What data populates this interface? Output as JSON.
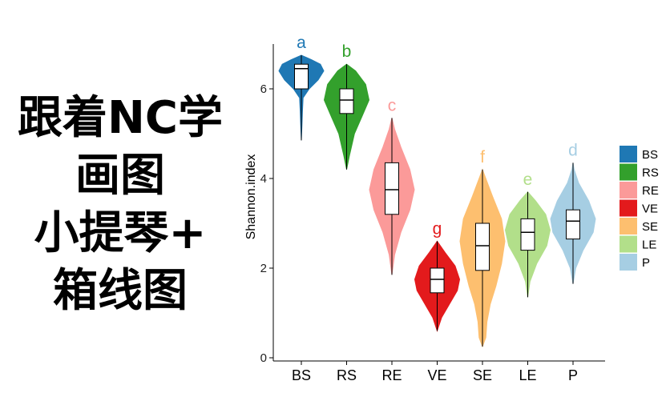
{
  "cover_title": {
    "lines": [
      "跟着NC学",
      "画图",
      "小提琴+",
      "箱线图"
    ]
  },
  "chart_data": {
    "type": "violin",
    "title": "",
    "xlabel": "",
    "ylabel": "Shannon.index",
    "ylim": [
      0,
      7
    ],
    "yticks": [
      0,
      2,
      4,
      6
    ],
    "grid": false,
    "legend_position": "right",
    "categories": [
      "BS",
      "RS",
      "RE",
      "VE",
      "SE",
      "LE",
      "P"
    ],
    "series": [
      {
        "name": "BS",
        "color": "#1f78b4",
        "letter": "a",
        "min": 4.85,
        "max": 6.75,
        "q1": 6.0,
        "median": 6.45,
        "q3": 6.55,
        "density": [
          [
            4.85,
            0
          ],
          [
            5.2,
            0.03
          ],
          [
            5.5,
            0.05
          ],
          [
            5.8,
            0.08
          ],
          [
            6.0,
            0.35
          ],
          [
            6.2,
            0.75
          ],
          [
            6.4,
            1.0
          ],
          [
            6.55,
            0.85
          ],
          [
            6.65,
            0.45
          ],
          [
            6.75,
            0
          ]
        ]
      },
      {
        "name": "RS",
        "color": "#33a02c",
        "letter": "b",
        "min": 4.2,
        "max": 6.55,
        "q1": 5.45,
        "median": 5.75,
        "q3": 6.0,
        "density": [
          [
            4.2,
            0
          ],
          [
            4.5,
            0.12
          ],
          [
            5.0,
            0.35
          ],
          [
            5.4,
            0.7
          ],
          [
            5.75,
            1.0
          ],
          [
            6.1,
            0.85
          ],
          [
            6.4,
            0.4
          ],
          [
            6.55,
            0
          ]
        ]
      },
      {
        "name": "RE",
        "color": "#fb9a99",
        "letter": "c",
        "min": 1.85,
        "max": 5.35,
        "q1": 3.2,
        "median": 3.75,
        "q3": 4.35,
        "density": [
          [
            1.85,
            0
          ],
          [
            2.3,
            0.12
          ],
          [
            2.8,
            0.4
          ],
          [
            3.3,
            0.8
          ],
          [
            3.75,
            1.0
          ],
          [
            4.2,
            0.8
          ],
          [
            4.7,
            0.4
          ],
          [
            5.1,
            0.12
          ],
          [
            5.35,
            0
          ]
        ]
      },
      {
        "name": "VE",
        "color": "#e31a1c",
        "letter": "g",
        "min": 0.6,
        "max": 2.6,
        "q1": 1.45,
        "median": 1.75,
        "q3": 2.0,
        "density": [
          [
            0.6,
            0
          ],
          [
            0.9,
            0.2
          ],
          [
            1.2,
            0.55
          ],
          [
            1.5,
            0.9
          ],
          [
            1.75,
            1.0
          ],
          [
            2.05,
            0.8
          ],
          [
            2.35,
            0.35
          ],
          [
            2.6,
            0
          ]
        ]
      },
      {
        "name": "SE",
        "color": "#fdbf6f",
        "letter": "f",
        "min": 0.25,
        "max": 4.2,
        "q1": 1.95,
        "median": 2.5,
        "q3": 3.0,
        "density": [
          [
            0.25,
            0
          ],
          [
            0.45,
            0.15
          ],
          [
            0.8,
            0.2
          ],
          [
            1.2,
            0.35
          ],
          [
            1.6,
            0.6
          ],
          [
            2.1,
            0.85
          ],
          [
            2.6,
            1.0
          ],
          [
            3.1,
            0.85
          ],
          [
            3.6,
            0.45
          ],
          [
            4.0,
            0.15
          ],
          [
            4.2,
            0
          ]
        ]
      },
      {
        "name": "LE",
        "color": "#b2df8a",
        "letter": "e",
        "min": 1.35,
        "max": 3.7,
        "q1": 2.4,
        "median": 2.8,
        "q3": 3.1,
        "density": [
          [
            1.35,
            0
          ],
          [
            1.7,
            0.1
          ],
          [
            2.1,
            0.4
          ],
          [
            2.5,
            0.85
          ],
          [
            2.85,
            1.0
          ],
          [
            3.2,
            0.8
          ],
          [
            3.5,
            0.35
          ],
          [
            3.7,
            0
          ]
        ]
      },
      {
        "name": "P",
        "color": "#a6cee3",
        "letter": "d",
        "min": 1.65,
        "max": 4.35,
        "q1": 2.65,
        "median": 3.05,
        "q3": 3.3,
        "density": [
          [
            1.65,
            0
          ],
          [
            2.0,
            0.12
          ],
          [
            2.4,
            0.45
          ],
          [
            2.8,
            0.9
          ],
          [
            3.1,
            1.0
          ],
          [
            3.5,
            0.7
          ],
          [
            3.9,
            0.25
          ],
          [
            4.2,
            0.05
          ],
          [
            4.35,
            0
          ]
        ]
      }
    ]
  }
}
